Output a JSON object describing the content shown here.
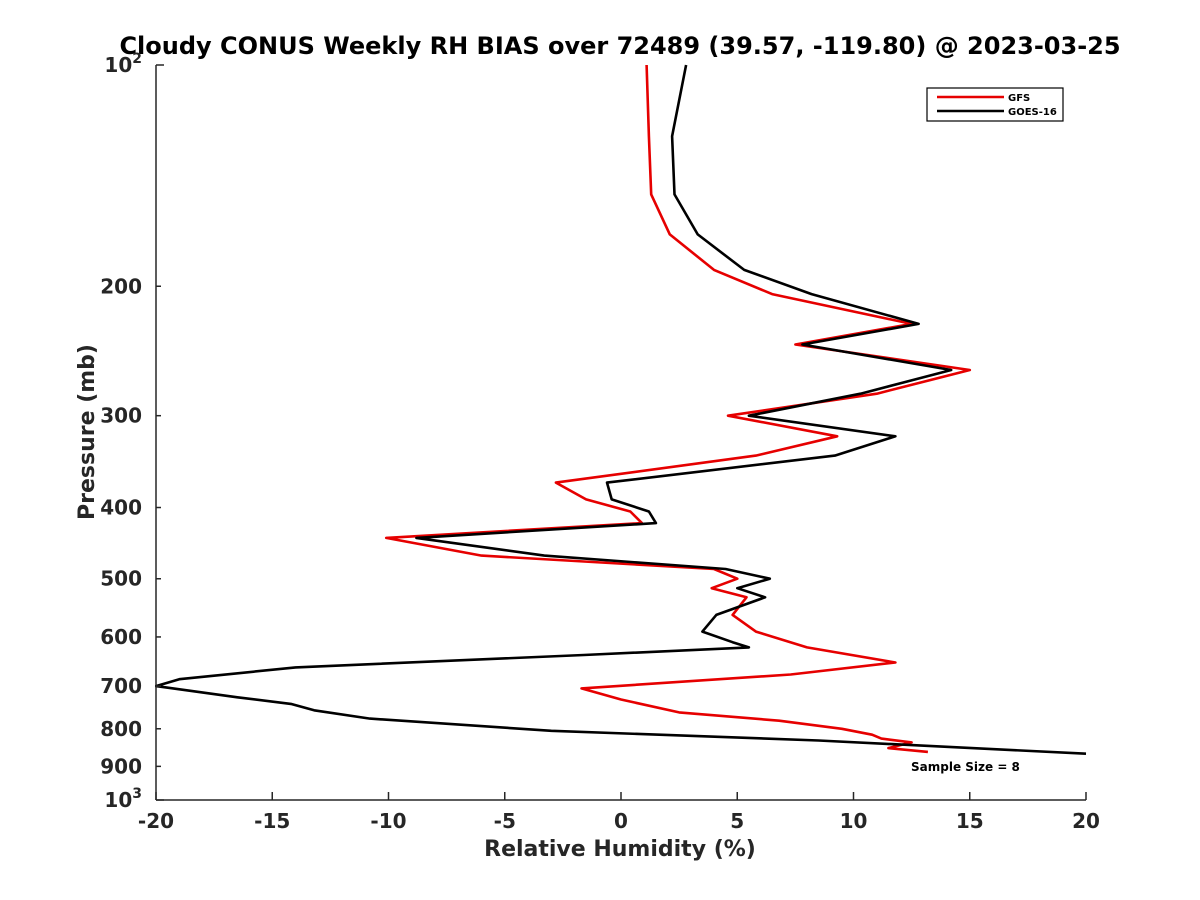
{
  "chart_data": {
    "type": "line",
    "title": "Cloudy CONUS Weekly RH BIAS over 72489 (39.57, -119.80) @ 2023-03-25",
    "xlabel": "Relative Humidity (%)",
    "ylabel": "Pressure (mb)",
    "xlim": [
      -20,
      20
    ],
    "ylim": [
      100,
      1000
    ],
    "y_scale": "log",
    "y_reversed": true,
    "grid": false,
    "legend_position": "top-right",
    "x_ticks": [
      -20,
      -15,
      -10,
      -5,
      0,
      5,
      10,
      15,
      20
    ],
    "x_tick_labels": [
      "-20",
      "-15",
      "-10",
      "-5",
      "0",
      "5",
      "10",
      "15",
      "20"
    ],
    "y_ticks": [
      100,
      200,
      300,
      400,
      500,
      600,
      700,
      800,
      900,
      1000
    ],
    "y_tick_labels": [
      "10^2",
      "200",
      "300",
      "400",
      "500",
      "600",
      "700",
      "800",
      "900",
      "10^3"
    ],
    "annotation": "Sample Size = 8",
    "series": [
      {
        "name": "GFS",
        "color": "#e60000",
        "points": [
          [
            1.1,
            100
          ],
          [
            1.2,
            125
          ],
          [
            1.3,
            150
          ],
          [
            2.1,
            170
          ],
          [
            4.0,
            190
          ],
          [
            6.5,
            205
          ],
          [
            12.5,
            225
          ],
          [
            7.5,
            240
          ],
          [
            15.0,
            260
          ],
          [
            11.0,
            280
          ],
          [
            4.6,
            300
          ],
          [
            9.3,
            320
          ],
          [
            5.8,
            340
          ],
          [
            -2.8,
            370
          ],
          [
            -1.5,
            390
          ],
          [
            0.4,
            405
          ],
          [
            0.9,
            420
          ],
          [
            -10.1,
            440
          ],
          [
            -6.0,
            465
          ],
          [
            4.0,
            485
          ],
          [
            5.0,
            500
          ],
          [
            3.9,
            515
          ],
          [
            5.4,
            530
          ],
          [
            4.8,
            560
          ],
          [
            5.8,
            590
          ],
          [
            8.0,
            620
          ],
          [
            11.8,
            650
          ],
          [
            7.3,
            675
          ],
          [
            -1.7,
            705
          ],
          [
            0.0,
            730
          ],
          [
            2.5,
            760
          ],
          [
            6.8,
            780
          ],
          [
            9.5,
            800
          ],
          [
            10.8,
            815
          ],
          [
            11.2,
            825
          ],
          [
            12.5,
            835
          ],
          [
            11.5,
            850
          ],
          [
            13.2,
            860
          ]
        ]
      },
      {
        "name": "GOES-16",
        "color": "#000000",
        "points": [
          [
            2.8,
            100
          ],
          [
            2.2,
            125
          ],
          [
            2.3,
            150
          ],
          [
            3.3,
            170
          ],
          [
            5.3,
            190
          ],
          [
            8.2,
            205
          ],
          [
            12.8,
            225
          ],
          [
            7.8,
            240
          ],
          [
            14.2,
            260
          ],
          [
            10.3,
            280
          ],
          [
            5.5,
            300
          ],
          [
            11.8,
            320
          ],
          [
            9.2,
            340
          ],
          [
            -0.6,
            370
          ],
          [
            -0.4,
            390
          ],
          [
            1.2,
            405
          ],
          [
            1.5,
            420
          ],
          [
            -8.8,
            440
          ],
          [
            -3.3,
            465
          ],
          [
            4.5,
            485
          ],
          [
            6.4,
            500
          ],
          [
            5.0,
            515
          ],
          [
            6.2,
            530
          ],
          [
            4.1,
            560
          ],
          [
            3.5,
            590
          ],
          [
            4.8,
            610
          ],
          [
            5.5,
            620
          ],
          [
            -1.6,
            635
          ],
          [
            -14.0,
            660
          ],
          [
            -19.0,
            685
          ],
          [
            -20.0,
            700
          ],
          [
            -16.5,
            725
          ],
          [
            -14.2,
            740
          ],
          [
            -13.2,
            755
          ],
          [
            -10.8,
            775
          ],
          [
            -3.0,
            805
          ],
          [
            8.5,
            830
          ],
          [
            20.0,
            865
          ]
        ]
      }
    ]
  }
}
